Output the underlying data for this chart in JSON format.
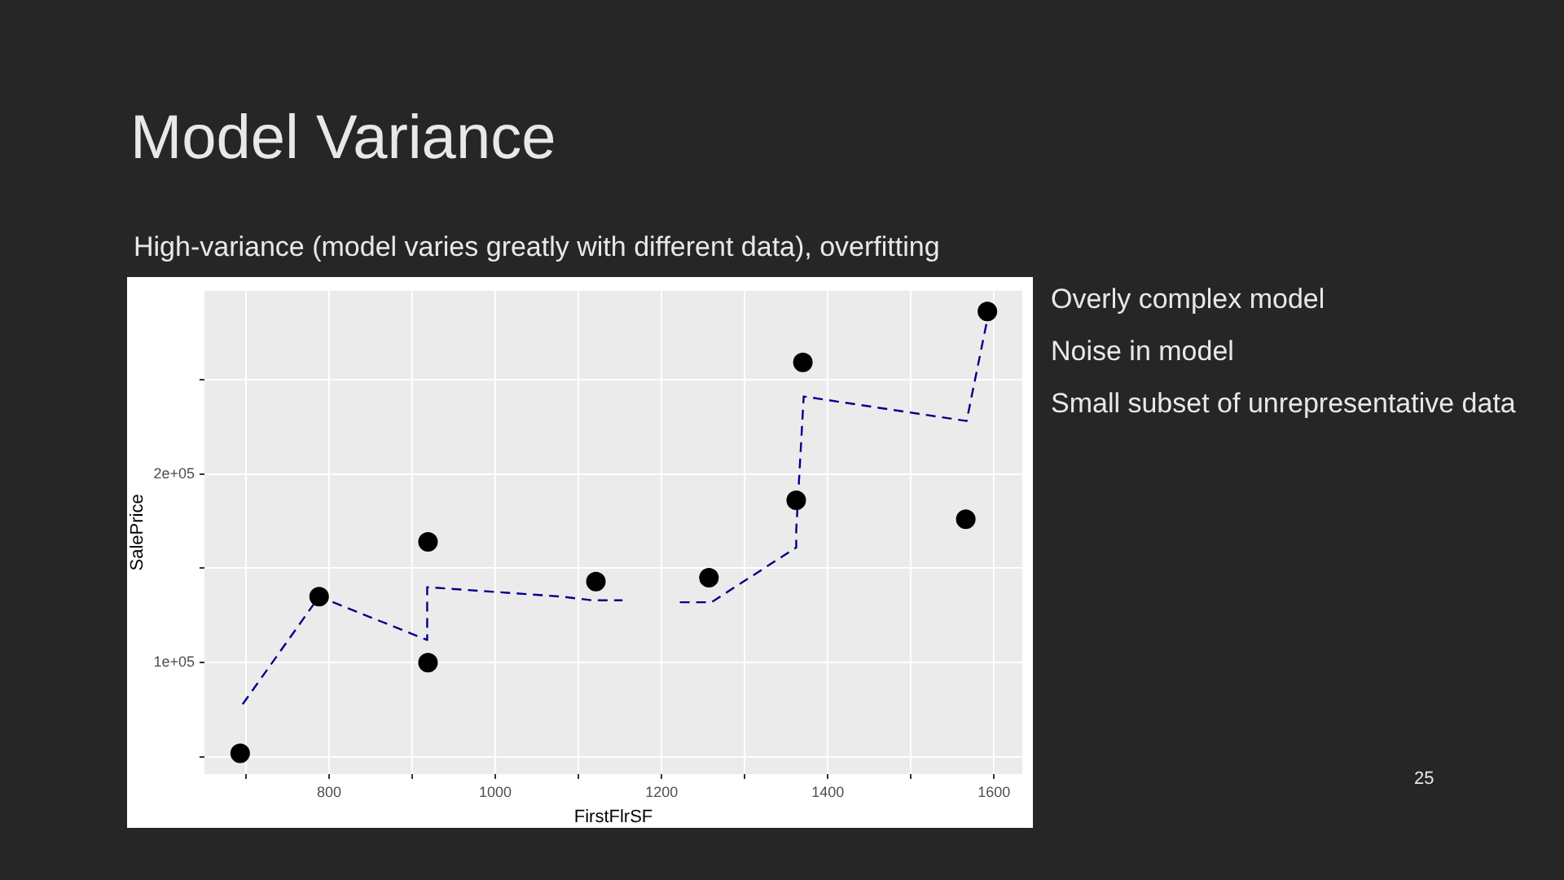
{
  "chart_data": {
    "type": "scatter",
    "title": "Model Variance",
    "subtitle": "High-variance (model varies greatly with different data), overfitting",
    "xlabel": "FirstFlrSF",
    "ylabel": "SalePrice",
    "annotations": [
      "Overly complex model",
      "Noise in model",
      "Small subset of unrepresentative data",
      "25"
    ],
    "series": [
      {
        "color": "#000000",
        "marker": "circle",
        "x": [
          693,
          788,
          919,
          919,
          1121,
          1257,
          1362,
          1370,
          1566,
          1592
        ],
        "values": [
          52000,
          135000,
          164000,
          100000,
          143000,
          145000,
          186000,
          259000,
          176000,
          286000
        ]
      },
      {
        "type": "line",
        "color": "#00008b",
        "line_style": "dashed",
        "x": [
          696,
          788,
          918,
          918,
          1080,
          1117,
          1153,
          1190,
          1222,
          1260,
          1362,
          1362,
          1371,
          1567,
          1592
        ],
        "values": [
          78000,
          135000,
          112000,
          140000,
          135000,
          133000,
          133000,
          null,
          132000,
          132000,
          161000,
          170000,
          241000,
          228000,
          282000
        ]
      }
    ],
    "xlim": [
      650,
      1634
    ],
    "ylim": [
      41000,
      297000
    ],
    "xticks": [
      {
        "value": 700,
        "label": null
      },
      800,
      {
        "value": 900,
        "label": null
      },
      1000,
      {
        "value": 1100,
        "label": null
      },
      1200,
      {
        "value": 1300,
        "label": null
      },
      1400,
      {
        "value": 1500,
        "label": null
      },
      1600
    ],
    "yticks": [
      {
        "value": 50000,
        "label": null
      },
      {
        "value": 100000,
        "label": "1e+05"
      },
      {
        "value": 150000,
        "label": null
      },
      {
        "value": 200000,
        "label": "2e+05"
      },
      {
        "value": 250000,
        "label": null
      }
    ],
    "grid": true,
    "legend": false
  }
}
